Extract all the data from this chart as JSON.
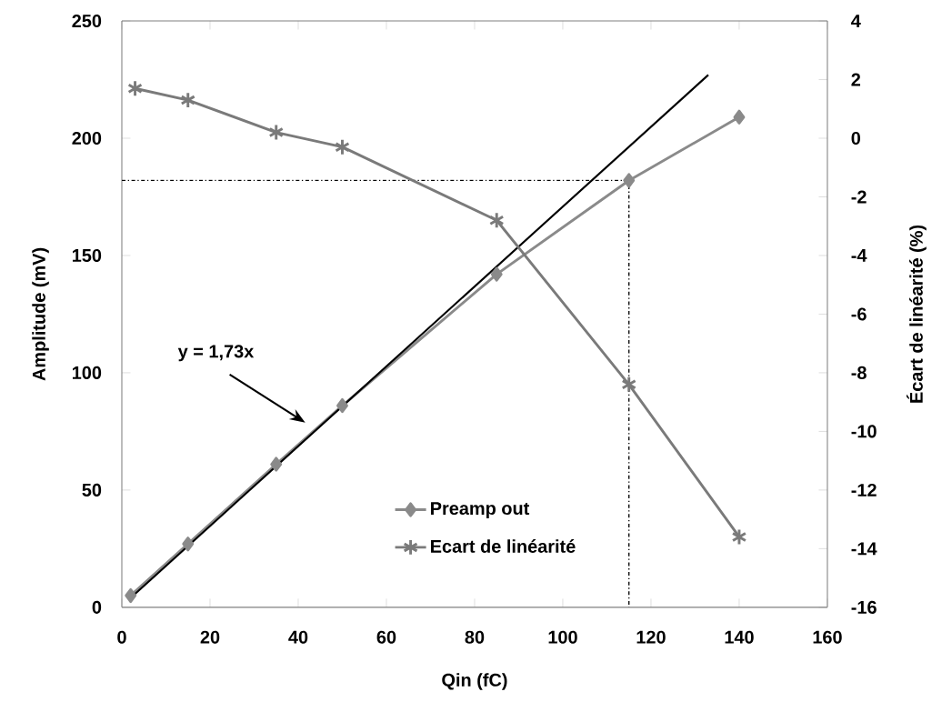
{
  "chart_data": {
    "type": "line",
    "xlabel": "Qin (fC)",
    "ylabel": "Amplitude (mV)",
    "y2label": "Écart de linéarité (%)",
    "xlim": [
      0,
      160
    ],
    "xticks": [
      0,
      20,
      40,
      60,
      80,
      100,
      120,
      140,
      160
    ],
    "ylim": [
      0,
      250
    ],
    "yticks": [
      0,
      50,
      100,
      150,
      200,
      250
    ],
    "y2lim": [
      -16,
      4
    ],
    "y2ticks": [
      -16,
      -14,
      -12,
      -10,
      -8,
      -6,
      -4,
      -2,
      0,
      2,
      4
    ],
    "legend": "bottom",
    "grid": false,
    "series": [
      {
        "name": "Preamp out",
        "color": "#8a8a8a",
        "marker": "diamond",
        "x": [
          2,
          15,
          35,
          50,
          85,
          115,
          140
        ],
        "values": [
          5,
          27,
          61,
          86,
          142,
          182,
          209
        ]
      },
      {
        "name": "Ecart de linéarité",
        "color": "#7a7a7a",
        "marker": "cross",
        "axis": "y2",
        "x": [
          3,
          15,
          35,
          50,
          85,
          115,
          140
        ],
        "values": [
          1.7,
          1.3,
          0.2,
          -0.3,
          -2.8,
          -8.4,
          -13.6
        ]
      },
      {
        "color": "#000000",
        "marker": "none",
        "x": [
          2,
          133
        ],
        "values": [
          4,
          227
        ]
      },
      {
        "color": "#000000",
        "marker": "none",
        "line_style": "dashed",
        "x": [
          0,
          115,
          115
        ],
        "values": [
          182,
          182,
          0
        ]
      }
    ],
    "annotations": [
      "y = 1,73x"
    ]
  }
}
